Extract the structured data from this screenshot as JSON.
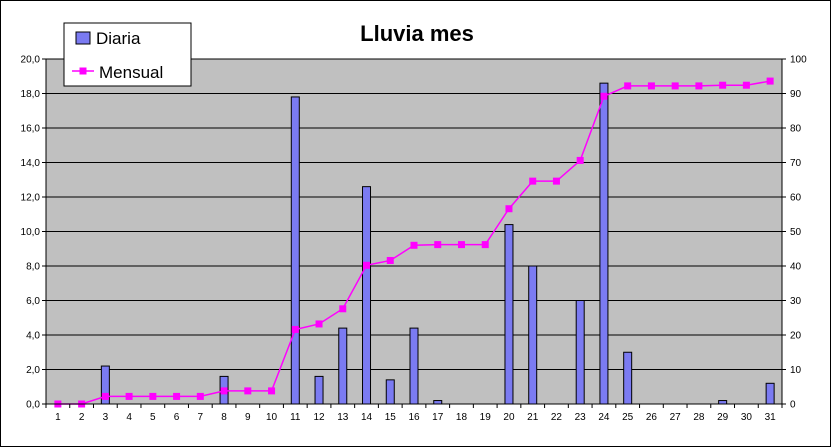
{
  "chart_data": {
    "type": "bar",
    "title": "Lluvia mes",
    "xlabel": "",
    "ylabel": "",
    "categories": [
      "1",
      "2",
      "3",
      "4",
      "5",
      "6",
      "7",
      "8",
      "9",
      "10",
      "11",
      "12",
      "13",
      "14",
      "15",
      "16",
      "17",
      "18",
      "19",
      "20",
      "21",
      "22",
      "23",
      "24",
      "25",
      "26",
      "27",
      "28",
      "29",
      "30",
      "31"
    ],
    "ylim": [
      0,
      20
    ],
    "y_ticks": [
      "0,0",
      "2,0",
      "4,0",
      "6,0",
      "8,0",
      "10,0",
      "12,0",
      "14,0",
      "16,0",
      "18,0",
      "20,0"
    ],
    "y2lim": [
      0,
      100
    ],
    "y2_ticks": [
      "0",
      "10",
      "20",
      "30",
      "40",
      "50",
      "60",
      "70",
      "80",
      "90",
      "100"
    ],
    "grid": true,
    "legend_position": "top-left",
    "series": [
      {
        "name": "Diaria",
        "type": "bar",
        "axis": "left",
        "color": "#7b7bf2",
        "values": [
          0,
          0,
          2.2,
          0,
          0,
          0,
          0,
          1.6,
          0,
          0,
          17.8,
          1.6,
          4.4,
          12.6,
          1.4,
          4.4,
          0.2,
          0,
          0,
          10.4,
          8.0,
          0,
          6.0,
          18.6,
          3.0,
          0,
          0,
          0,
          0.2,
          0,
          1.2
        ]
      },
      {
        "name": "Mensual",
        "type": "line",
        "axis": "right",
        "color": "#ff00ff",
        "values": [
          0,
          0,
          2.2,
          2.2,
          2.2,
          2.2,
          2.2,
          3.8,
          3.8,
          3.8,
          21.6,
          23.2,
          27.6,
          40.2,
          41.6,
          46.0,
          46.2,
          46.2,
          46.2,
          56.6,
          64.6,
          64.6,
          70.6,
          89.2,
          92.2,
          92.2,
          92.2,
          92.2,
          92.4,
          92.4,
          93.6
        ]
      }
    ]
  }
}
